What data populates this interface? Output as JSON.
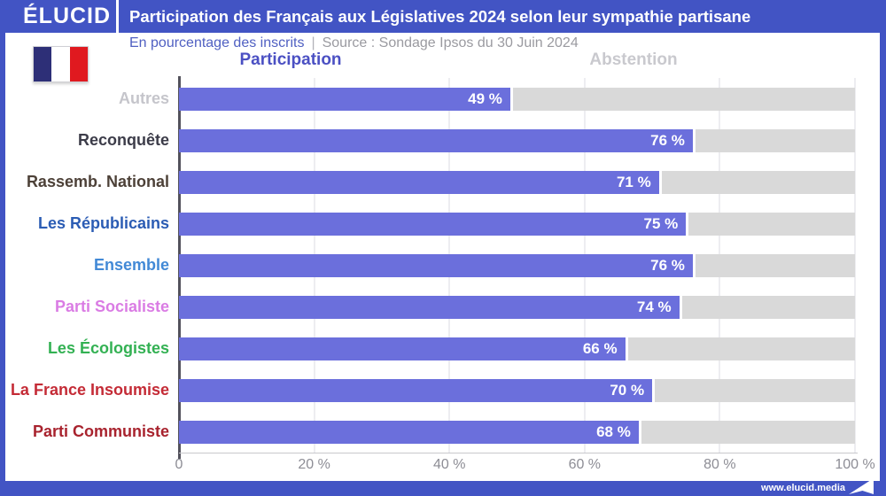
{
  "header": {
    "logo": "ÉLUCID",
    "title": "Participation des Français aux Législatives 2024 selon leur sympathie partisane"
  },
  "subtitle": {
    "note": "En pourcentage des inscrits",
    "separator": "|",
    "source": "Source : Sondage Ipsos du 30 Juin 2024"
  },
  "column_headers": {
    "participation": "Participation",
    "abstention": "Abstention"
  },
  "footer": {
    "url": "www.elucid.media"
  },
  "flag": {
    "name": "france-flag",
    "stripe_colors": [
      "#2d2f77",
      "#ffffff",
      "#e0191f"
    ]
  },
  "colors": {
    "accent_blue": "#4254c4",
    "bar_participation": "#6b6fdc",
    "bar_abstention": "#d9d9d9",
    "participation_header": "#4b50c3",
    "abstention_header": "#c9c9ce",
    "subtitle_note": "#5060c2",
    "subtitle_source": "#9a9aa0",
    "gridline": "#ededf1",
    "axis_line": "#53525c",
    "tick_label": "#8d8d95"
  },
  "chart_data": {
    "type": "bar",
    "orientation": "horizontal",
    "stacked": true,
    "title": "Participation des Français aux Législatives 2024 selon leur sympathie partisane",
    "unit": "pourcentage des inscrits",
    "value_suffix": " %",
    "xlim": [
      0,
      100
    ],
    "x_ticks": [
      "0",
      "20 %",
      "40 %",
      "60 %",
      "80 %",
      "100 %"
    ],
    "x_tick_values": [
      0,
      20,
      40,
      60,
      80,
      100
    ],
    "grid": true,
    "legend_position": "top (as column headers)",
    "categories": [
      "Autres",
      "Reconquête",
      "Rassemb. National",
      "Les Républicains",
      "Ensemble",
      "Parti Socialiste",
      "Les Écologistes",
      "La France Insoumise",
      "Parti Communiste"
    ],
    "category_label_colors": [
      "#c5c5cb",
      "#3c3c49",
      "#4d4138",
      "#2b5cb4",
      "#4289d6",
      "#da7ce4",
      "#33b153",
      "#c42b36",
      "#a8232e"
    ],
    "series": [
      {
        "name": "Participation",
        "color": "#6b6fdc",
        "values": [
          49,
          76,
          71,
          75,
          76,
          74,
          66,
          70,
          68
        ],
        "data_labels": [
          "49 %",
          "76 %",
          "71 %",
          "75 %",
          "76 %",
          "74 %",
          "66 %",
          "70 %",
          "68 %"
        ]
      },
      {
        "name": "Abstention",
        "color": "#d9d9d9",
        "values": [
          51,
          24,
          29,
          25,
          24,
          26,
          34,
          30,
          32
        ],
        "data_labels": []
      }
    ]
  }
}
